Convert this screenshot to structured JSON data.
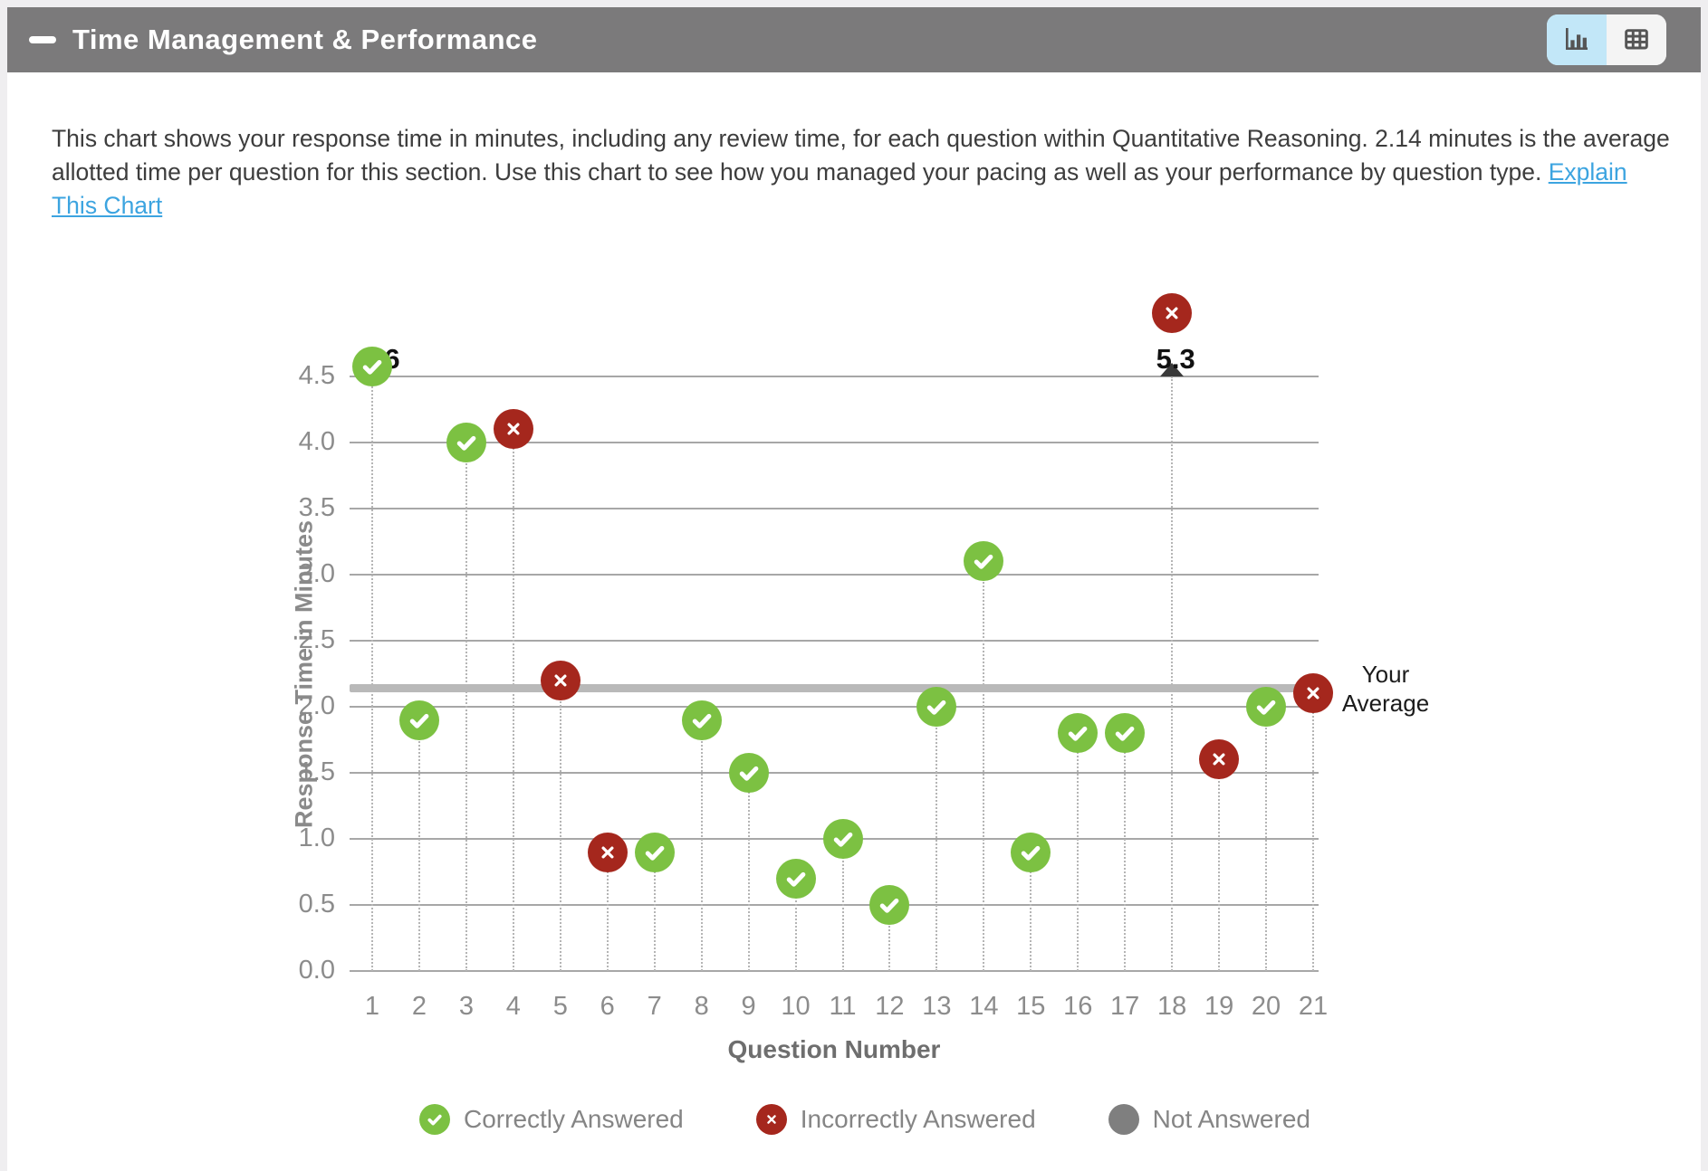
{
  "header": {
    "title": "Time Management & Performance"
  },
  "view_toggle": {
    "chart_button": "chart-view",
    "table_button": "table-view",
    "selected": "chart-view",
    "selected_color": "#c2e7f8"
  },
  "description": {
    "text": "This chart shows your response time in minutes, including any review time, for each question within Quantitative Reasoning. 2.14 minutes is the average allotted time per question for this section. Use this chart to see how you managed your pacing as well as your performance by question type. ",
    "link_text": "Explain This Chart"
  },
  "chart_data": {
    "type": "scatter",
    "xlabel": "Question Number",
    "ylabel": "Response Time in Minutes",
    "ylim": [
      0,
      4.5
    ],
    "yticks": [
      0.0,
      0.5,
      1.0,
      1.5,
      2.0,
      2.5,
      3.0,
      3.5,
      4.0,
      4.5
    ],
    "grid": true,
    "points": [
      {
        "q": 1,
        "minutes": 6.0,
        "status": "correct",
        "clipped": true,
        "clip_label": "6",
        "clip_rise": 11,
        "clip_label_dx": 22
      },
      {
        "q": 2,
        "minutes": 1.9,
        "status": "correct"
      },
      {
        "q": 3,
        "minutes": 4.0,
        "status": "correct"
      },
      {
        "q": 4,
        "minutes": 4.1,
        "status": "incorrect"
      },
      {
        "q": 5,
        "minutes": 2.2,
        "status": "incorrect"
      },
      {
        "q": 6,
        "minutes": 0.9,
        "status": "incorrect"
      },
      {
        "q": 7,
        "minutes": 0.9,
        "status": "correct"
      },
      {
        "q": 8,
        "minutes": 1.9,
        "status": "correct"
      },
      {
        "q": 9,
        "minutes": 1.5,
        "status": "correct"
      },
      {
        "q": 10,
        "minutes": 0.7,
        "status": "correct"
      },
      {
        "q": 11,
        "minutes": 1.0,
        "status": "correct"
      },
      {
        "q": 12,
        "minutes": 0.5,
        "status": "correct"
      },
      {
        "q": 13,
        "minutes": 2.0,
        "status": "correct"
      },
      {
        "q": 14,
        "minutes": 3.1,
        "status": "correct"
      },
      {
        "q": 15,
        "minutes": 0.9,
        "status": "correct"
      },
      {
        "q": 16,
        "minutes": 1.8,
        "status": "correct"
      },
      {
        "q": 17,
        "minutes": 1.8,
        "status": "correct"
      },
      {
        "q": 18,
        "minutes": 5.3,
        "status": "incorrect",
        "clipped": true,
        "clip_label": "5.3",
        "clip_rise": 70,
        "clip_label_dx": 4
      },
      {
        "q": 19,
        "minutes": 1.6,
        "status": "incorrect"
      },
      {
        "q": 20,
        "minutes": 2.0,
        "status": "correct"
      },
      {
        "q": 21,
        "minutes": 2.1,
        "status": "incorrect"
      }
    ],
    "average": {
      "value": 2.14,
      "label_line1": "Your",
      "label_line2": "Average"
    },
    "legend": [
      {
        "status": "correct",
        "label": "Correctly Answered"
      },
      {
        "status": "incorrect",
        "label": "Incorrectly Answered"
      },
      {
        "status": "none",
        "label": "Not Answered"
      }
    ],
    "colors": {
      "correct": "#7cc142",
      "incorrect": "#a5271d",
      "not_answered": "#7f7f7f",
      "average_line": "#b9b9b9",
      "gridline": "#a7a7a7",
      "axis_text": "#8c8c8c"
    },
    "legend_position": "bottom"
  }
}
